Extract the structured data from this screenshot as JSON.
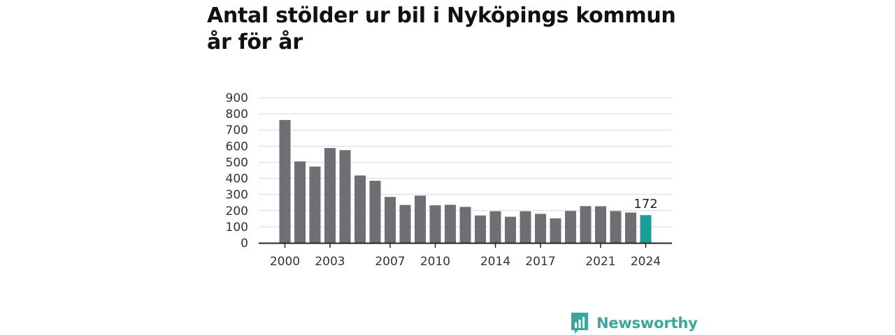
{
  "title": "Antal stölder ur bil i Nyköpings kommun år för år",
  "brand": {
    "name": "Newsworthy",
    "color": "#3aa79c",
    "logo_icon": "bar-chart-speech-bubble-icon"
  },
  "colors": {
    "bar": "#6f6e74",
    "highlight": "#1a9e95",
    "grid": "#d9d9d9",
    "axis": "#222222",
    "text": "#333333"
  },
  "chart_data": {
    "type": "bar",
    "title": "Antal stölder ur bil i Nyköpings kommun år för år",
    "xlabel": "",
    "ylabel": "",
    "ylim": [
      0,
      900
    ],
    "yticks": [
      0,
      100,
      200,
      300,
      400,
      500,
      600,
      700,
      800,
      900
    ],
    "grid": true,
    "categories": [
      2000,
      2001,
      2002,
      2003,
      2004,
      2005,
      2006,
      2007,
      2008,
      2009,
      2010,
      2011,
      2012,
      2013,
      2014,
      2015,
      2016,
      2017,
      2018,
      2019,
      2020,
      2021,
      2022,
      2023,
      2024
    ],
    "values": [
      762,
      505,
      473,
      588,
      575,
      418,
      385,
      285,
      235,
      293,
      233,
      236,
      223,
      170,
      196,
      162,
      196,
      180,
      152,
      198,
      228,
      227,
      197,
      188,
      172
    ],
    "xtick_labels": [
      "2000",
      "2003",
      "2007",
      "2010",
      "2014",
      "2017",
      "2021",
      "2024"
    ],
    "highlight_category": 2024,
    "annotations": [
      {
        "category": 2024,
        "text": "172"
      }
    ]
  }
}
